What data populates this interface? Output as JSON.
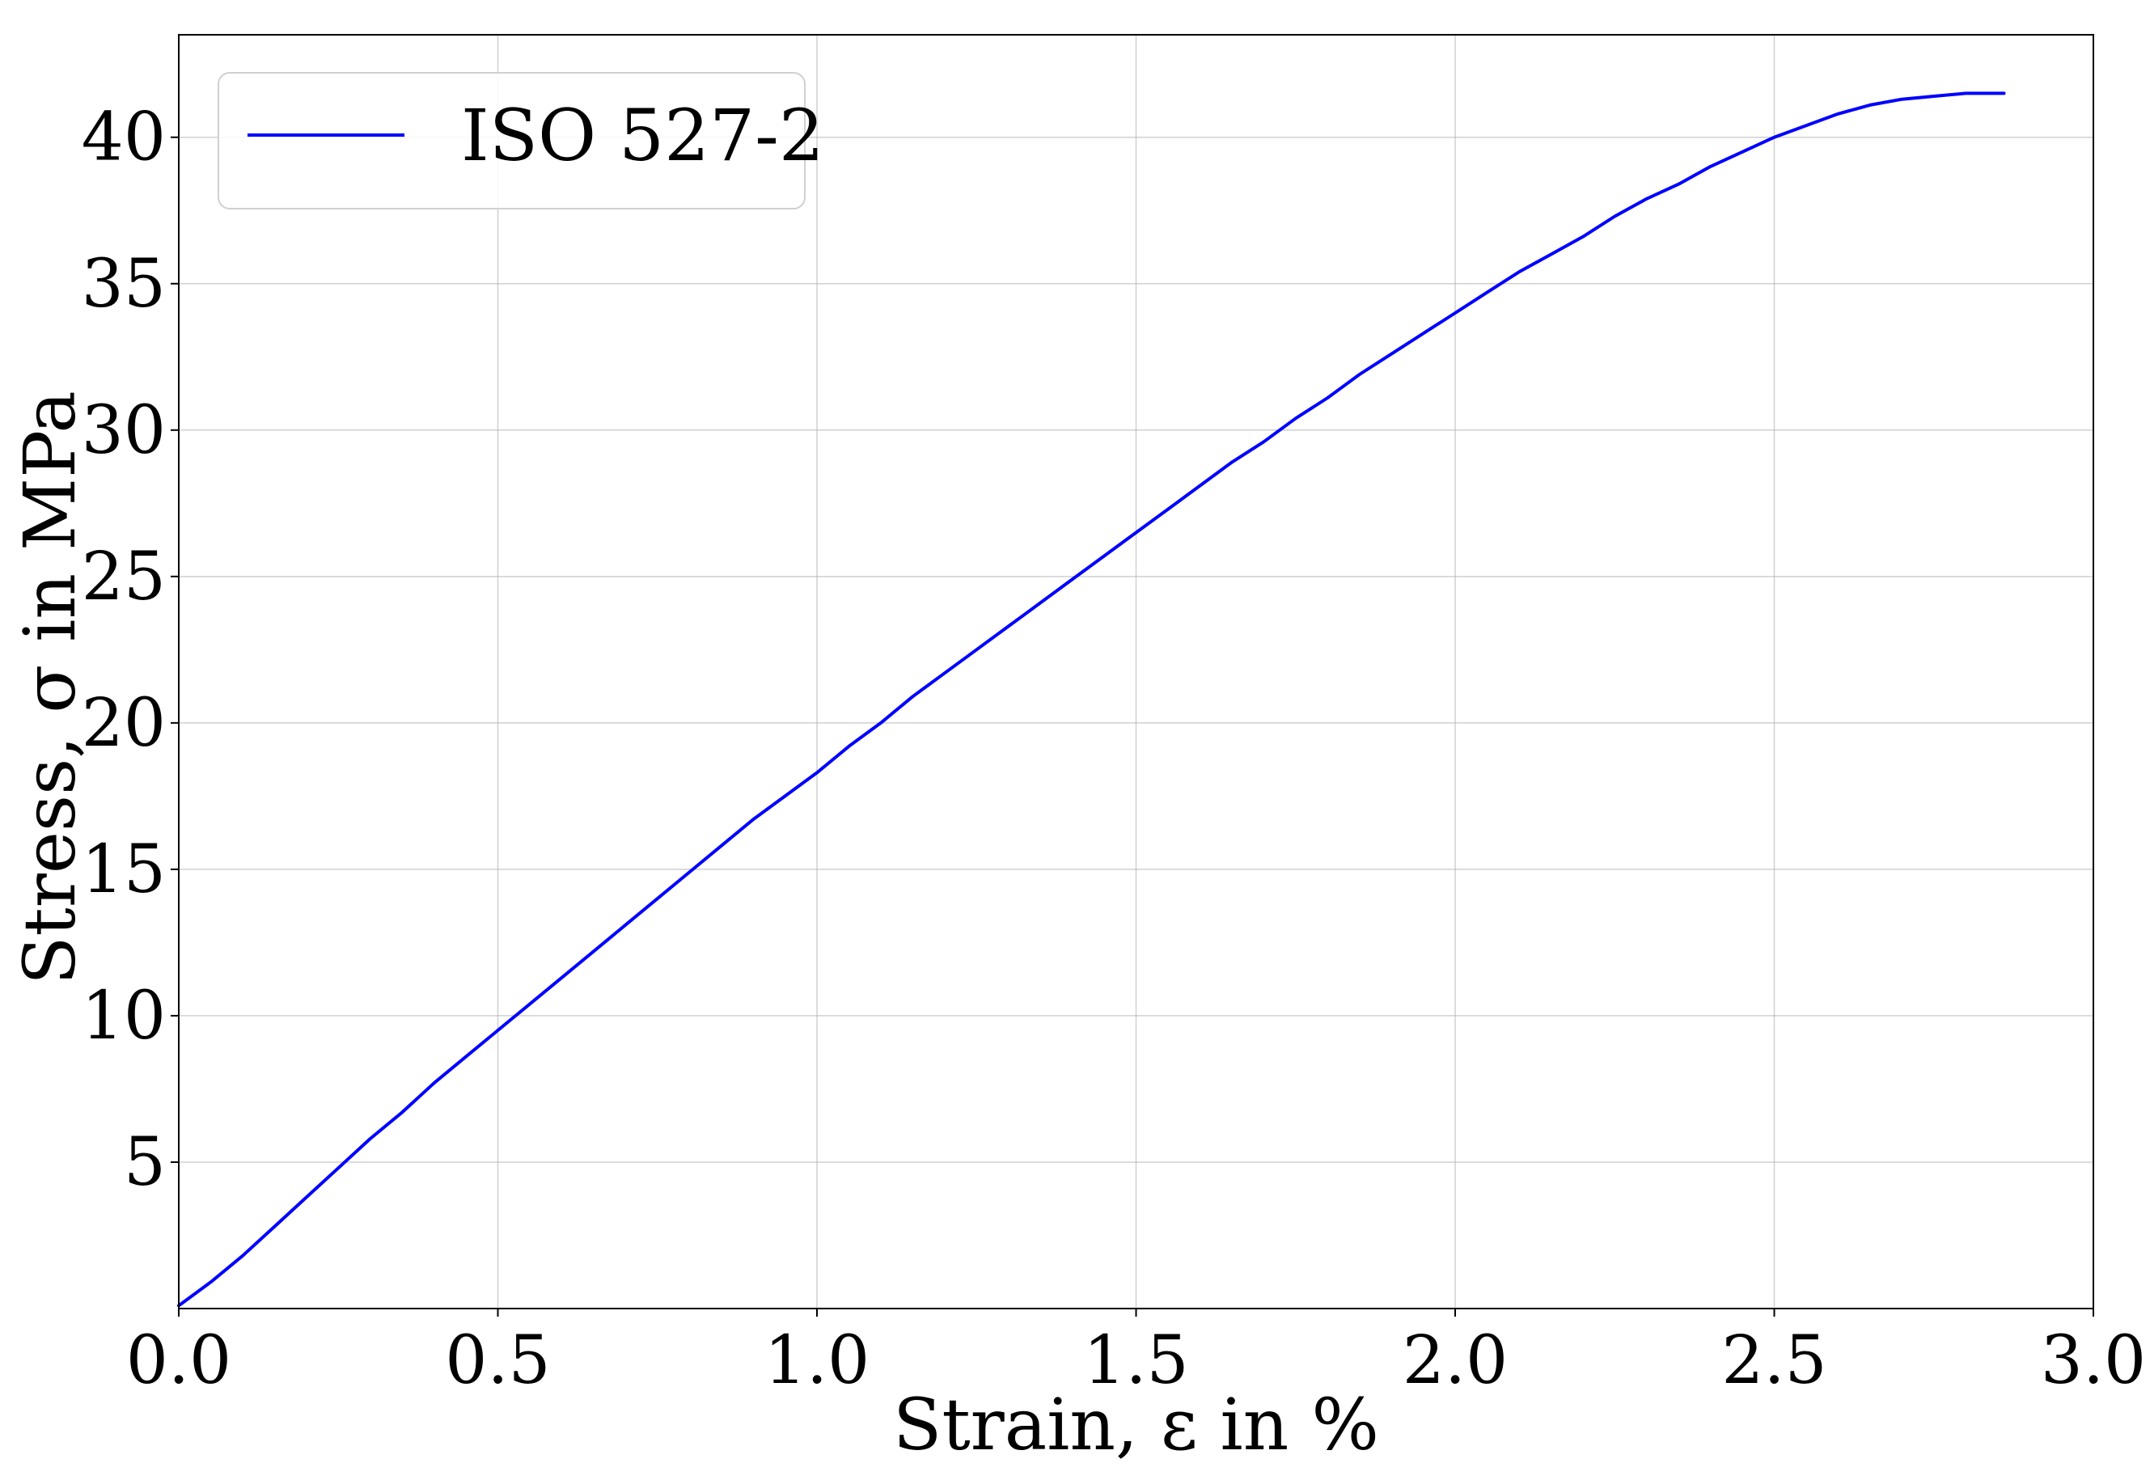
{
  "chart_data": {
    "type": "line",
    "title": "",
    "xlabel": "Strain, ε in %",
    "ylabel": "Stress, σ in MPa",
    "xlim": [
      0.0,
      3.0
    ],
    "ylim": [
      0.0,
      43.5
    ],
    "xticks": [
      0.0,
      0.5,
      1.0,
      1.5,
      2.0,
      2.5,
      3.0
    ],
    "xtick_labels": [
      "0.0",
      "0.5",
      "1.0",
      "1.5",
      "2.0",
      "2.5",
      "3.0"
    ],
    "yticks": [
      5,
      10,
      15,
      20,
      25,
      30,
      35,
      40
    ],
    "ytick_labels": [
      "5",
      "10",
      "15",
      "20",
      "25",
      "30",
      "35",
      "40"
    ],
    "grid": true,
    "legend_position": "top-left",
    "series": [
      {
        "name": "ISO 527-2",
        "color": "#0000ff",
        "x": [
          0.0,
          0.05,
          0.1,
          0.15,
          0.2,
          0.25,
          0.3,
          0.35,
          0.4,
          0.45,
          0.5,
          0.55,
          0.6,
          0.65,
          0.7,
          0.75,
          0.8,
          0.85,
          0.9,
          0.95,
          1.0,
          1.05,
          1.1,
          1.15,
          1.2,
          1.25,
          1.3,
          1.35,
          1.4,
          1.45,
          1.5,
          1.55,
          1.6,
          1.65,
          1.7,
          1.75,
          1.8,
          1.85,
          1.9,
          1.95,
          2.0,
          2.05,
          2.1,
          2.15,
          2.2,
          2.25,
          2.3,
          2.35,
          2.4,
          2.45,
          2.5,
          2.55,
          2.6,
          2.65,
          2.7,
          2.75,
          2.8,
          2.86
        ],
        "y": [
          0.1,
          0.9,
          1.8,
          2.8,
          3.8,
          4.8,
          5.8,
          6.7,
          7.7,
          8.6,
          9.5,
          10.4,
          11.3,
          12.2,
          13.1,
          14.0,
          14.9,
          15.8,
          16.7,
          17.5,
          18.3,
          19.2,
          20.0,
          20.9,
          21.7,
          22.5,
          23.3,
          24.1,
          24.9,
          25.7,
          26.5,
          27.3,
          28.1,
          28.9,
          29.6,
          30.4,
          31.1,
          31.9,
          32.6,
          33.3,
          34.0,
          34.7,
          35.4,
          36.0,
          36.6,
          37.3,
          37.9,
          38.4,
          39.0,
          39.5,
          40.0,
          40.4,
          40.8,
          41.1,
          41.3,
          41.4,
          41.5,
          41.5
        ]
      }
    ]
  }
}
